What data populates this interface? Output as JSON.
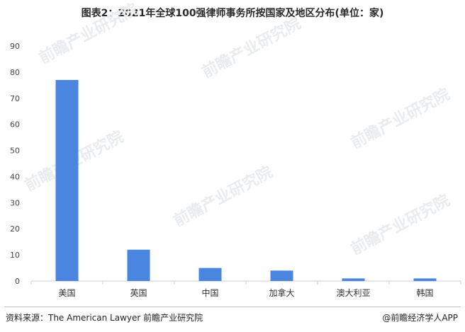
{
  "chart_data": {
    "type": "bar",
    "title": "图表2：2021年全球100强律师事务所按国家及地区分布(单位：家)",
    "categories": [
      "美国",
      "英国",
      "中国",
      "加拿大",
      "澳大利亚",
      "韩国"
    ],
    "values": [
      77,
      12,
      5,
      4,
      1,
      1
    ],
    "ylim": [
      0,
      90
    ],
    "yticks": [
      0,
      10,
      20,
      30,
      40,
      50,
      60,
      70,
      80,
      90
    ],
    "xlabel": "",
    "ylabel": "",
    "grid": false,
    "legend": "none",
    "bar_color": "#4a86e0"
  },
  "footer": {
    "source": "资料来源：The American Lawyer 前瞻产业研究院",
    "brand": "@前瞻经济学人APP"
  },
  "watermark": {
    "text": "前瞻产业研究院"
  }
}
